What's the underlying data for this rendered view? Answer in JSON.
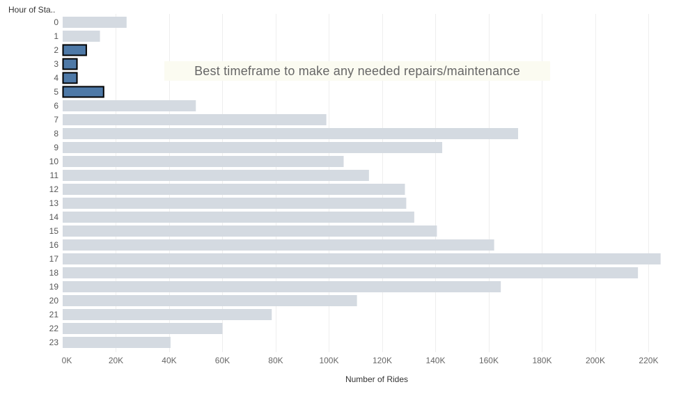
{
  "chart_data": {
    "type": "bar",
    "orientation": "horizontal",
    "ylabel": "Hour of Sta..",
    "xlabel": "Number of Rides",
    "annotation": "Best timeframe to make any needed repairs/maintenance",
    "categories": [
      "0",
      "1",
      "2",
      "3",
      "4",
      "5",
      "6",
      "7",
      "8",
      "9",
      "10",
      "11",
      "12",
      "13",
      "14",
      "15",
      "16",
      "17",
      "18",
      "19",
      "20",
      "21",
      "22",
      "23"
    ],
    "values": [
      24000,
      14000,
      9000,
      5500,
      5500,
      15500,
      50000,
      99000,
      171000,
      142500,
      105500,
      115000,
      128500,
      129000,
      132000,
      140500,
      162000,
      224500,
      216000,
      164500,
      110500,
      78500,
      60000,
      40500
    ],
    "highlighted": [
      "2",
      "3",
      "4",
      "5"
    ],
    "xlim": [
      0,
      234000
    ],
    "xticks": [
      0,
      20000,
      40000,
      60000,
      80000,
      100000,
      120000,
      140000,
      160000,
      180000,
      200000,
      220000
    ],
    "xtick_labels": [
      "0K",
      "20K",
      "40K",
      "60K",
      "80K",
      "100K",
      "120K",
      "140K",
      "160K",
      "180K",
      "200K",
      "220K"
    ],
    "grid": "vertical",
    "colors": {
      "bar": "#d4dae1",
      "highlight_bar": "#4e79a7",
      "highlight_stroke": "#000000",
      "grid": "#eeeeee",
      "annotation_bg": "#fbfbf1"
    }
  }
}
